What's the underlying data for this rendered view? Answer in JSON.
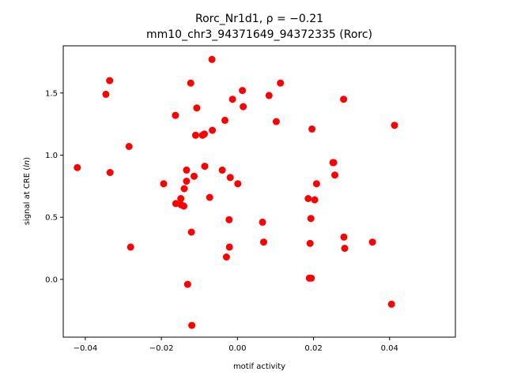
{
  "chart_data": {
    "type": "scatter",
    "title_line1": "Rorc_Nr1d1, ρ = −0.21",
    "title_line2": "mm10_chr3_94371649_94372335 (Rorc)",
    "xlabel": "motif activity",
    "ylabel": "signal at CRE (ln)",
    "xlim": [
      -0.0458,
      0.0573
    ],
    "ylim": [
      -0.465,
      1.88
    ],
    "xticks": [
      -0.04,
      -0.02,
      0.0,
      0.02,
      0.04
    ],
    "xtick_labels": [
      "−0.04",
      "−0.02",
      "0.00",
      "0.02",
      "0.04"
    ],
    "yticks": [
      0.0,
      0.5,
      1.0,
      1.5
    ],
    "ytick_labels": [
      "0.0",
      "0.5",
      "1.0",
      "1.5"
    ],
    "grid": false,
    "marker_color": "#ff0000",
    "points": [
      {
        "x": -0.0421,
        "y": 0.9
      },
      {
        "x": -0.0346,
        "y": 1.49
      },
      {
        "x": -0.0336,
        "y": 1.6
      },
      {
        "x": -0.0335,
        "y": 0.86
      },
      {
        "x": -0.0285,
        "y": 1.07
      },
      {
        "x": -0.0281,
        "y": 0.26
      },
      {
        "x": -0.0194,
        "y": 0.77
      },
      {
        "x": -0.0163,
        "y": 1.32
      },
      {
        "x": -0.0162,
        "y": 0.61
      },
      {
        "x": -0.0149,
        "y": 0.65
      },
      {
        "x": -0.0148,
        "y": 0.6
      },
      {
        "x": -0.0141,
        "y": 0.59
      },
      {
        "x": -0.014,
        "y": 0.73
      },
      {
        "x": -0.0134,
        "y": 0.79
      },
      {
        "x": -0.0134,
        "y": 0.88
      },
      {
        "x": -0.0131,
        "y": -0.04
      },
      {
        "x": -0.0123,
        "y": 1.58
      },
      {
        "x": -0.0121,
        "y": 0.38
      },
      {
        "x": -0.012,
        "y": -0.37
      },
      {
        "x": -0.0114,
        "y": 0.83
      },
      {
        "x": -0.011,
        "y": 1.16
      },
      {
        "x": -0.0107,
        "y": 1.38
      },
      {
        "x": -0.0092,
        "y": 1.16
      },
      {
        "x": -0.0087,
        "y": 1.17
      },
      {
        "x": -0.0086,
        "y": 0.91
      },
      {
        "x": -0.0073,
        "y": 0.66
      },
      {
        "x": -0.0067,
        "y": 1.77
      },
      {
        "x": -0.0066,
        "y": 1.2
      },
      {
        "x": -0.004,
        "y": 0.88
      },
      {
        "x": -0.0033,
        "y": 1.28
      },
      {
        "x": -0.0029,
        "y": 0.18
      },
      {
        "x": -0.0022,
        "y": 0.48
      },
      {
        "x": -0.0021,
        "y": 0.26
      },
      {
        "x": -0.0019,
        "y": 0.82
      },
      {
        "x": -0.0013,
        "y": 1.45
      },
      {
        "x": 0.0001,
        "y": 0.77
      },
      {
        "x": 0.0013,
        "y": 1.52
      },
      {
        "x": 0.0015,
        "y": 1.39
      },
      {
        "x": 0.0066,
        "y": 0.46
      },
      {
        "x": 0.0069,
        "y": 0.3
      },
      {
        "x": 0.0083,
        "y": 1.48
      },
      {
        "x": 0.0102,
        "y": 1.27
      },
      {
        "x": 0.0113,
        "y": 1.58
      },
      {
        "x": 0.0186,
        "y": 0.65
      },
      {
        "x": 0.0189,
        "y": 0.01
      },
      {
        "x": 0.0191,
        "y": 0.29
      },
      {
        "x": 0.0193,
        "y": 0.49
      },
      {
        "x": 0.0194,
        "y": 0.01
      },
      {
        "x": 0.0196,
        "y": 1.21
      },
      {
        "x": 0.0203,
        "y": 0.64
      },
      {
        "x": 0.0208,
        "y": 0.77
      },
      {
        "x": 0.0251,
        "y": 0.94
      },
      {
        "x": 0.0253,
        "y": 0.94
      },
      {
        "x": 0.0256,
        "y": 0.84
      },
      {
        "x": 0.0279,
        "y": 1.45
      },
      {
        "x": 0.028,
        "y": 0.34
      },
      {
        "x": 0.0282,
        "y": 0.25
      },
      {
        "x": 0.0355,
        "y": 0.3
      },
      {
        "x": 0.0405,
        "y": -0.2
      },
      {
        "x": 0.0413,
        "y": 1.24
      }
    ]
  }
}
